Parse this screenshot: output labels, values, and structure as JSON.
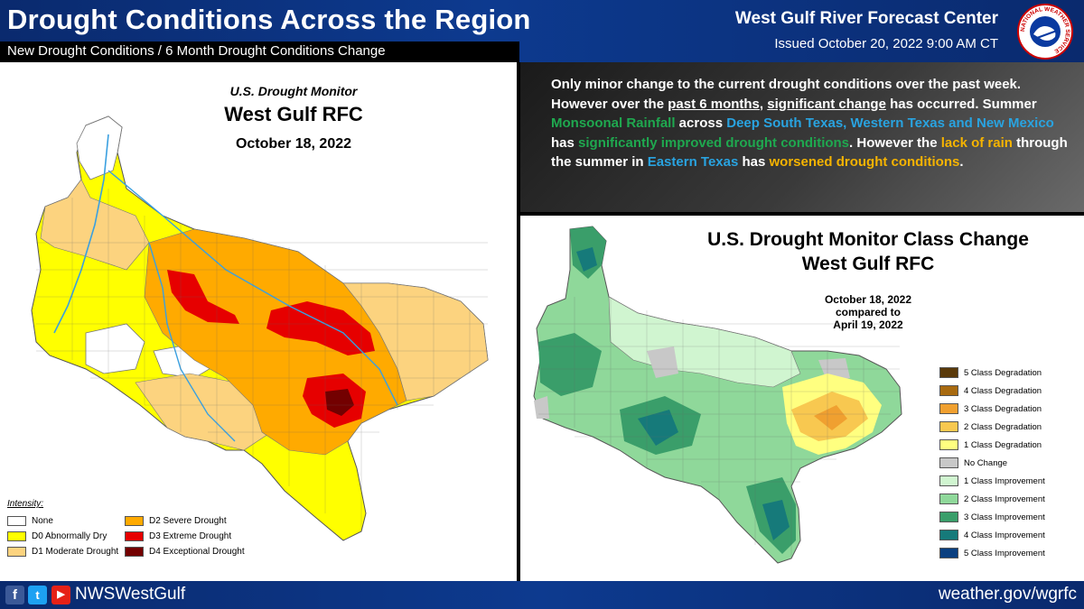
{
  "header": {
    "title": "Drought Conditions Across the Region",
    "subtitle": "New Drought Conditions / 6 Month Drought Conditions Change",
    "organization": "West Gulf River Forecast Center",
    "issued": "Issued October 20, 2022 9:00 AM CT",
    "logo_text": "NATIONAL WEATHER SERVICE"
  },
  "summary": {
    "s1": "Only minor change to the current drought conditions over the past week. However over the ",
    "s2": "past 6 months",
    "s3": ", ",
    "s4": "significant change",
    "s5": " has occurred. Summer ",
    "s6": "Monsoonal Rainfall",
    "s7": " across ",
    "s8": "Deep South Texas, Western Texas and New Mexico",
    "s9": " has ",
    "s10": "significantly improved drought conditions",
    "s11": ". However the ",
    "s12": "lack of rain",
    "s13": " through the summer in ",
    "s14": "Eastern Texas",
    "s15": " has ",
    "s16": "worsened drought conditions",
    "s17": "."
  },
  "left_map": {
    "title_line1": "U.S. Drought Monitor",
    "title_line2": "West Gulf RFC",
    "date": "October 18, 2022",
    "legend_caption": "Intensity:",
    "legend": [
      {
        "label": "None",
        "color": "#ffffff"
      },
      {
        "label": "D0 Abnormally Dry",
        "color": "#ffff00"
      },
      {
        "label": "D1 Moderate Drought",
        "color": "#fcd37f"
      },
      {
        "label": "D2 Severe Drought",
        "color": "#ffaa00"
      },
      {
        "label": "D3 Extreme Drought",
        "color": "#e60000"
      },
      {
        "label": "D4 Exceptional Drought",
        "color": "#730000"
      }
    ]
  },
  "right_map": {
    "title_line1": "U.S. Drought Monitor Class Change",
    "title_line2": "West Gulf RFC",
    "date_line1": "October 18, 2022",
    "date_line2": "compared to",
    "date_line3": "April 19, 2022",
    "legend": [
      {
        "label": "5 Class Degradation",
        "color": "#5a3a0a"
      },
      {
        "label": "4 Class Degradation",
        "color": "#a86a10"
      },
      {
        "label": "3 Class Degradation",
        "color": "#f0a030"
      },
      {
        "label": "2 Class Degradation",
        "color": "#f8c850"
      },
      {
        "label": "1 Class Degradation",
        "color": "#ffff80"
      },
      {
        "label": "No Change",
        "color": "#c8c8c8"
      },
      {
        "label": "1 Class Improvement",
        "color": "#d0f5d0"
      },
      {
        "label": "2 Class Improvement",
        "color": "#8fd89a"
      },
      {
        "label": "3 Class Improvement",
        "color": "#3a9e6a"
      },
      {
        "label": "4 Class Improvement",
        "color": "#167a7a"
      },
      {
        "label": "5 Class Improvement",
        "color": "#0a3f80"
      }
    ]
  },
  "footer": {
    "handle": "NWSWestGulf",
    "website": "weather.gov/wgrfc",
    "fb_glyph": "f",
    "tw_glyph": "t",
    "yt_glyph": "▶"
  }
}
